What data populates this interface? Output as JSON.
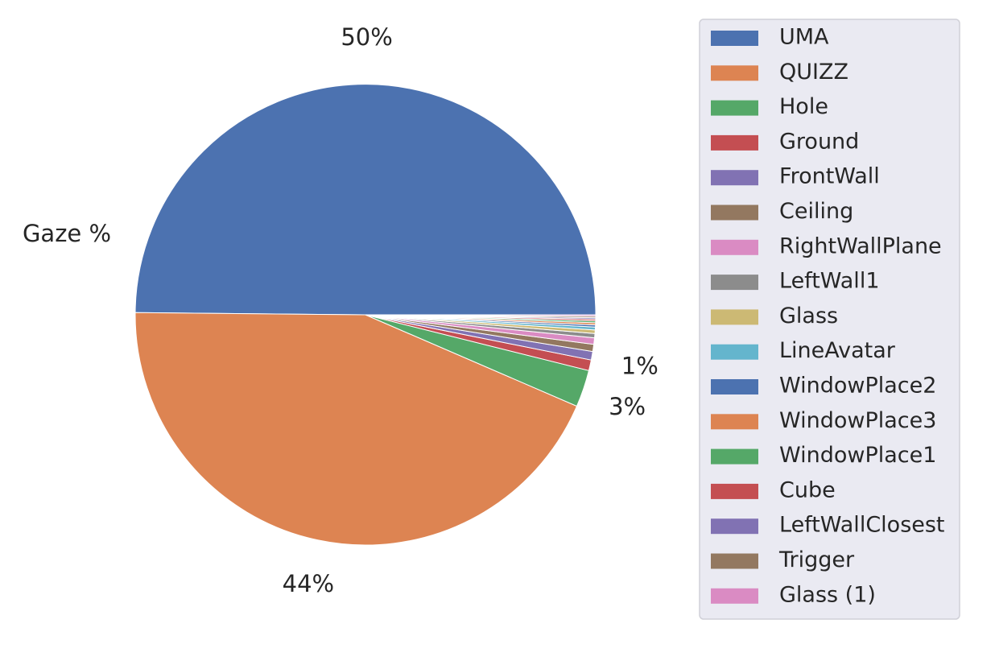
{
  "chart_data": {
    "type": "pie",
    "ylabel": "Gaze %",
    "start_angle_deg": 0,
    "direction": "counterclockwise",
    "legend_placement": "right",
    "categories": [
      "UMA",
      "QUIZZ",
      "Hole",
      "Ground",
      "FrontWall",
      "Ceiling",
      "RightWallPlane",
      "LeftWall1",
      "Glass",
      "LineAvatar",
      "WindowPlace2",
      "WindowPlace3",
      "WindowPlace1",
      "Cube",
      "LeftWallClosest",
      "Trigger",
      "Glass (1)"
    ],
    "values": [
      49.9,
      43.7,
      2.6,
      0.75,
      0.6,
      0.5,
      0.45,
      0.3,
      0.25,
      0.2,
      0.15,
      0.15,
      0.13,
      0.12,
      0.1,
      0.1,
      0.1
    ],
    "data_labels": [
      "50%",
      "44%",
      "3%",
      "1%",
      "",
      "",
      "",
      "",
      "",
      "",
      "",
      "",
      "",
      "",
      "",
      "",
      ""
    ],
    "colors": [
      "#4c72b0",
      "#dd8452",
      "#55a868",
      "#c44e52",
      "#8172b3",
      "#937860",
      "#da8bc3",
      "#8c8c8c",
      "#ccb974",
      "#64b5cd",
      "#4c72b0",
      "#dd8452",
      "#55a868",
      "#c44e52",
      "#8172b3",
      "#937860",
      "#da8bc3"
    ]
  }
}
